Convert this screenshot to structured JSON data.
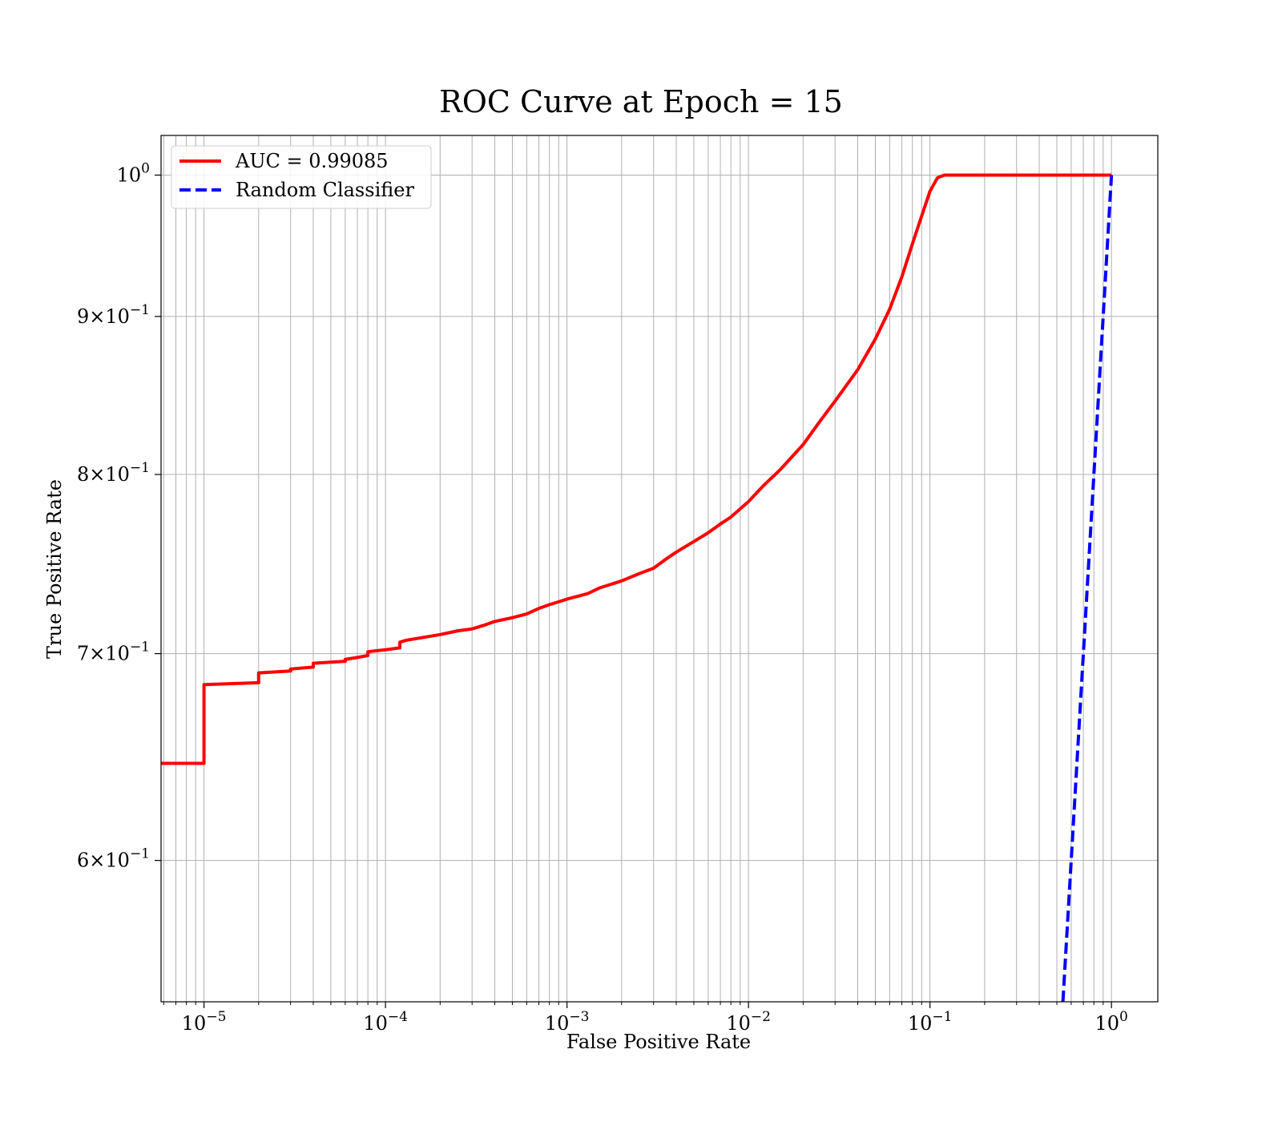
{
  "chart_data": {
    "type": "line",
    "title": "ROC Curve at Epoch = 15",
    "xlabel": "False Positive Rate",
    "ylabel": "True Positive Rate",
    "xscale": "log",
    "yscale": "log",
    "xlim": [
      5.8e-06,
      1.8
    ],
    "ylim": [
      0.54,
      1.03
    ],
    "grid": "both (major and minor)",
    "legend_position": "top-left",
    "x_ticks": [
      {
        "value": 1e-05,
        "base": "10",
        "exp": "−5"
      },
      {
        "value": 0.0001,
        "base": "10",
        "exp": "−4"
      },
      {
        "value": 0.001,
        "base": "10",
        "exp": "−3"
      },
      {
        "value": 0.01,
        "base": "10",
        "exp": "−2"
      },
      {
        "value": 0.1,
        "base": "10",
        "exp": "−1"
      },
      {
        "value": 1,
        "base": "10",
        "exp": "0"
      }
    ],
    "y_ticks": [
      {
        "value": 1.0,
        "mant": "",
        "base": "10",
        "exp": "0"
      },
      {
        "value": 0.9,
        "mant": "9×",
        "base": "10",
        "exp": "−1"
      },
      {
        "value": 0.8,
        "mant": "8×",
        "base": "10",
        "exp": "−1"
      },
      {
        "value": 0.7,
        "mant": "7×",
        "base": "10",
        "exp": "−1"
      },
      {
        "value": 0.6,
        "mant": "6×",
        "base": "10",
        "exp": "−1"
      }
    ],
    "series": [
      {
        "name": "AUC = 0.99085",
        "color": "#ff0000",
        "style": "solid",
        "points": [
          [
            5.8e-06,
            0.645
          ],
          [
            1e-05,
            0.645
          ],
          [
            1e-05,
            0.684
          ],
          [
            2e-05,
            0.685
          ],
          [
            2e-05,
            0.69
          ],
          [
            3e-05,
            0.691
          ],
          [
            3e-05,
            0.692
          ],
          [
            4e-05,
            0.693
          ],
          [
            4e-05,
            0.695
          ],
          [
            6e-05,
            0.696
          ],
          [
            6e-05,
            0.697
          ],
          [
            7e-05,
            0.698
          ],
          [
            8e-05,
            0.699
          ],
          [
            8e-05,
            0.701
          ],
          [
            0.0001,
            0.702
          ],
          [
            0.00012,
            0.703
          ],
          [
            0.00012,
            0.706
          ],
          [
            0.00013,
            0.707
          ],
          [
            0.00015,
            0.708
          ],
          [
            0.0002,
            0.71
          ],
          [
            0.00025,
            0.712
          ],
          [
            0.0003,
            0.713
          ],
          [
            0.00035,
            0.715
          ],
          [
            0.0004,
            0.717
          ],
          [
            0.0005,
            0.719
          ],
          [
            0.0006,
            0.721
          ],
          [
            0.0007,
            0.724
          ],
          [
            0.0008,
            0.726
          ],
          [
            0.001,
            0.729
          ],
          [
            0.0013,
            0.732
          ],
          [
            0.0015,
            0.735
          ],
          [
            0.002,
            0.739
          ],
          [
            0.0025,
            0.743
          ],
          [
            0.003,
            0.746
          ],
          [
            0.0035,
            0.751
          ],
          [
            0.004,
            0.755
          ],
          [
            0.005,
            0.761
          ],
          [
            0.006,
            0.766
          ],
          [
            0.007,
            0.771
          ],
          [
            0.008,
            0.775
          ],
          [
            0.01,
            0.784
          ],
          [
            0.012,
            0.793
          ],
          [
            0.015,
            0.803
          ],
          [
            0.02,
            0.818
          ],
          [
            0.025,
            0.833
          ],
          [
            0.03,
            0.845
          ],
          [
            0.04,
            0.865
          ],
          [
            0.05,
            0.885
          ],
          [
            0.06,
            0.905
          ],
          [
            0.07,
            0.927
          ],
          [
            0.08,
            0.95
          ],
          [
            0.09,
            0.97
          ],
          [
            0.1,
            0.988
          ],
          [
            0.11,
            0.998
          ],
          [
            0.12,
            1.0
          ],
          [
            1.0,
            1.0
          ]
        ]
      },
      {
        "name": "Random Classifier",
        "color": "#0000ff",
        "style": "dashed",
        "points": [
          [
            0.54,
            0.54
          ],
          [
            1.0,
            1.0
          ]
        ]
      }
    ]
  }
}
